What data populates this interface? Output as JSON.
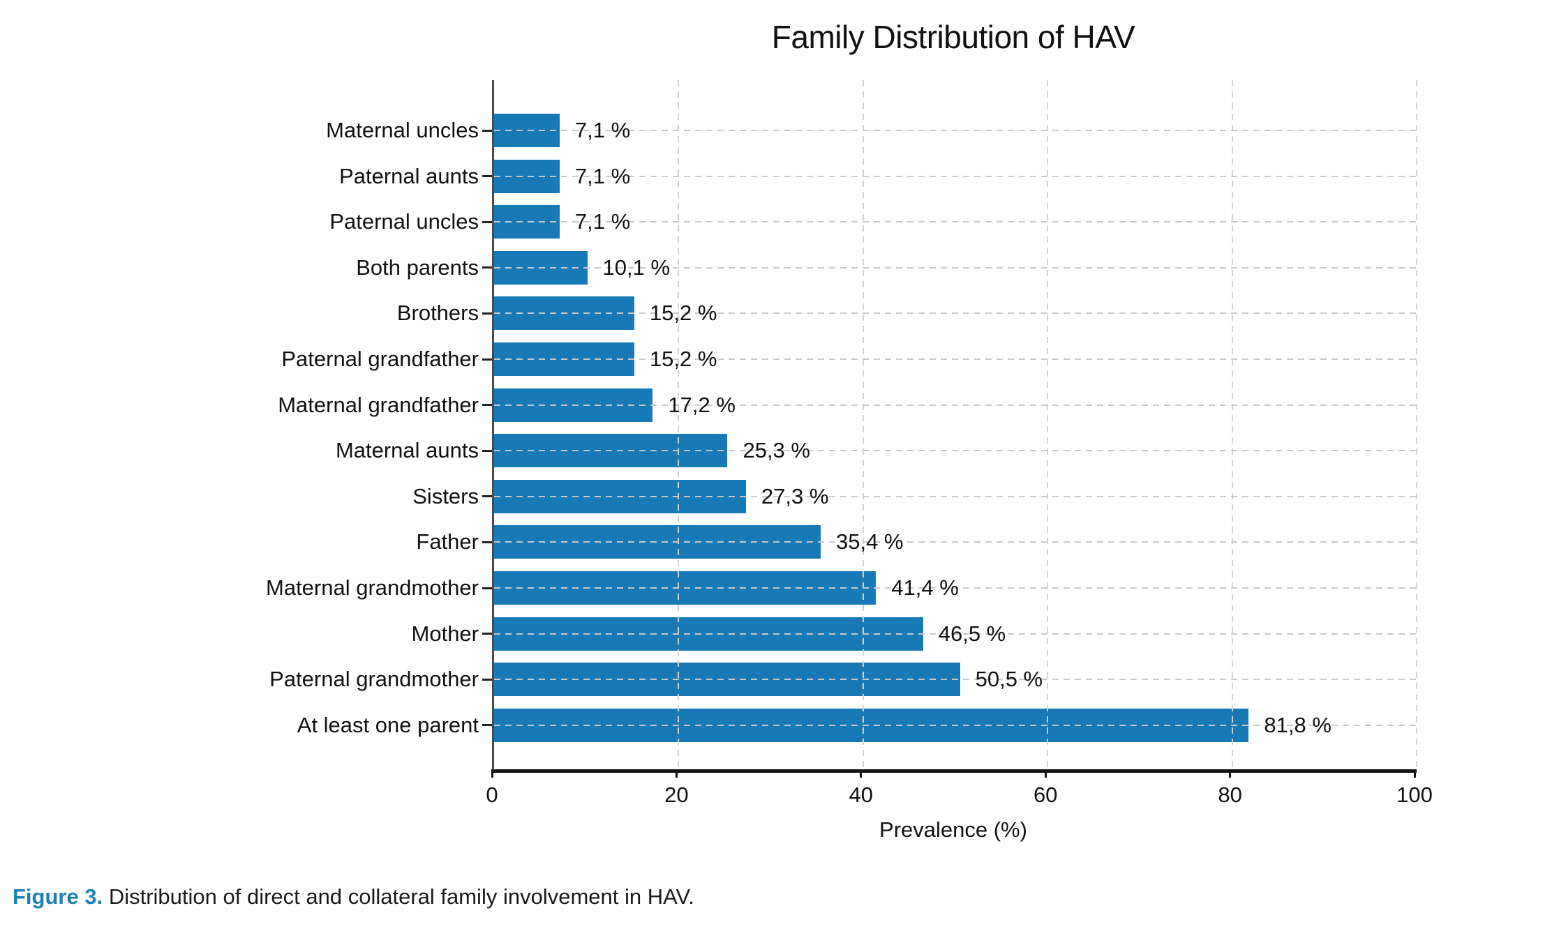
{
  "title": "Family Distribution of HAV",
  "caption": {
    "label": "Figure 3.",
    "text": " Distribution of direct and collateral family involvement in HAV."
  },
  "colors": {
    "bar": "#1779b5",
    "caption_label": "#1b80b4",
    "grid": "#cccccc",
    "axis": "#141414",
    "text": "#111111"
  },
  "chart_data": {
    "type": "bar",
    "orientation": "horizontal",
    "title": "Family Distribution of HAV",
    "xlabel": "Prevalence (%)",
    "ylabel": "",
    "xlim": [
      0,
      100
    ],
    "x_ticks": [
      0,
      20,
      40,
      60,
      80,
      100
    ],
    "grid": true,
    "categories_top_to_bottom": [
      "Maternal uncles",
      "Paternal aunts",
      "Paternal uncles",
      "Both parents",
      "Brothers",
      "Paternal grandfather",
      "Maternal grandfather",
      "Maternal aunts",
      "Sisters",
      "Father",
      "Maternal grandmother",
      "Mother",
      "Paternal grandmother",
      "At least one parent"
    ],
    "values": [
      7.1,
      7.1,
      7.1,
      10.1,
      15.2,
      15.2,
      17.2,
      25.3,
      27.3,
      35.4,
      41.4,
      46.5,
      50.5,
      81.8
    ],
    "value_labels": [
      "7,1 %",
      "7,1 %",
      "7,1 %",
      "10,1 %",
      "15,2 %",
      "15,2 %",
      "17,2 %",
      "25,3 %",
      "27,3 %",
      "35,4 %",
      "41,4 %",
      "46,5 %",
      "50,5 %",
      "81,8 %"
    ]
  }
}
